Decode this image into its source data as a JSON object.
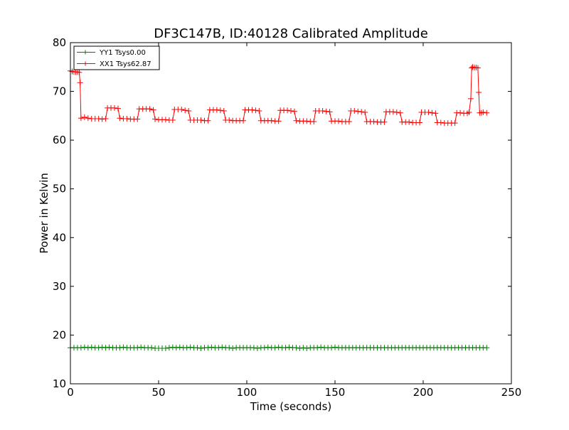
{
  "chart_data": {
    "type": "line",
    "title": "DF3C147B, ID:40128 Calibrated Amplitude",
    "xlabel": "Time (seconds)",
    "ylabel": "Power in Kelvin",
    "xlim": [
      0,
      250
    ],
    "ylim": [
      10,
      80
    ],
    "xticks": [
      0,
      50,
      100,
      150,
      200,
      250
    ],
    "yticks": [
      10,
      20,
      30,
      40,
      50,
      60,
      70,
      80
    ],
    "grid": false,
    "legend": "top-left",
    "marker": "+",
    "series": [
      {
        "name": "YY1 Tsys0.00",
        "color": "#008000",
        "points": [
          [
            0,
            17.4
          ],
          [
            2,
            17.4
          ],
          [
            4,
            17.4
          ],
          [
            6,
            17.4
          ],
          [
            8,
            17.5
          ],
          [
            10,
            17.4
          ],
          [
            12,
            17.5
          ],
          [
            14,
            17.4
          ],
          [
            16,
            17.4
          ],
          [
            18,
            17.5
          ],
          [
            20,
            17.4
          ],
          [
            22,
            17.5
          ],
          [
            24,
            17.4
          ],
          [
            26,
            17.4
          ],
          [
            28,
            17.4
          ],
          [
            30,
            17.5
          ],
          [
            32,
            17.4
          ],
          [
            34,
            17.4
          ],
          [
            36,
            17.4
          ],
          [
            38,
            17.4
          ],
          [
            40,
            17.5
          ],
          [
            42,
            17.4
          ],
          [
            44,
            17.4
          ],
          [
            46,
            17.4
          ],
          [
            48,
            17.3
          ],
          [
            50,
            17.3
          ],
          [
            52,
            17.3
          ],
          [
            54,
            17.3
          ],
          [
            56,
            17.4
          ],
          [
            58,
            17.5
          ],
          [
            60,
            17.4
          ],
          [
            62,
            17.5
          ],
          [
            64,
            17.4
          ],
          [
            66,
            17.4
          ],
          [
            68,
            17.5
          ],
          [
            70,
            17.4
          ],
          [
            72,
            17.4
          ],
          [
            74,
            17.3
          ],
          [
            76,
            17.4
          ],
          [
            78,
            17.4
          ],
          [
            80,
            17.5
          ],
          [
            82,
            17.4
          ],
          [
            84,
            17.4
          ],
          [
            86,
            17.5
          ],
          [
            88,
            17.4
          ],
          [
            90,
            17.4
          ],
          [
            92,
            17.3
          ],
          [
            94,
            17.4
          ],
          [
            96,
            17.4
          ],
          [
            98,
            17.4
          ],
          [
            100,
            17.4
          ],
          [
            102,
            17.4
          ],
          [
            104,
            17.4
          ],
          [
            106,
            17.3
          ],
          [
            108,
            17.4
          ],
          [
            110,
            17.4
          ],
          [
            112,
            17.5
          ],
          [
            114,
            17.4
          ],
          [
            116,
            17.4
          ],
          [
            118,
            17.5
          ],
          [
            120,
            17.4
          ],
          [
            122,
            17.4
          ],
          [
            124,
            17.5
          ],
          [
            126,
            17.4
          ],
          [
            128,
            17.4
          ],
          [
            130,
            17.3
          ],
          [
            132,
            17.4
          ],
          [
            134,
            17.3
          ],
          [
            136,
            17.4
          ],
          [
            138,
            17.4
          ],
          [
            140,
            17.4
          ],
          [
            142,
            17.5
          ],
          [
            144,
            17.4
          ],
          [
            146,
            17.4
          ],
          [
            148,
            17.4
          ],
          [
            150,
            17.5
          ],
          [
            152,
            17.4
          ],
          [
            154,
            17.4
          ],
          [
            156,
            17.4
          ],
          [
            158,
            17.4
          ],
          [
            160,
            17.4
          ],
          [
            162,
            17.4
          ],
          [
            164,
            17.4
          ],
          [
            166,
            17.4
          ],
          [
            168,
            17.4
          ],
          [
            170,
            17.4
          ],
          [
            172,
            17.4
          ],
          [
            174,
            17.4
          ],
          [
            176,
            17.4
          ],
          [
            178,
            17.4
          ],
          [
            180,
            17.4
          ],
          [
            182,
            17.4
          ],
          [
            184,
            17.4
          ],
          [
            186,
            17.4
          ],
          [
            188,
            17.4
          ],
          [
            190,
            17.4
          ],
          [
            192,
            17.4
          ],
          [
            194,
            17.4
          ],
          [
            196,
            17.4
          ],
          [
            198,
            17.4
          ],
          [
            200,
            17.4
          ],
          [
            202,
            17.4
          ],
          [
            204,
            17.4
          ],
          [
            206,
            17.4
          ],
          [
            208,
            17.4
          ],
          [
            210,
            17.4
          ],
          [
            212,
            17.4
          ],
          [
            214,
            17.4
          ],
          [
            216,
            17.4
          ],
          [
            218,
            17.4
          ],
          [
            220,
            17.4
          ],
          [
            222,
            17.4
          ],
          [
            224,
            17.4
          ],
          [
            226,
            17.4
          ],
          [
            228,
            17.4
          ],
          [
            230,
            17.4
          ],
          [
            232,
            17.4
          ],
          [
            234,
            17.4
          ],
          [
            236,
            17.4
          ]
        ]
      },
      {
        "name": "XX1 Tsys62.87",
        "color": "#ff0000",
        "points": [
          [
            0,
            74.2
          ],
          [
            1,
            74.1
          ],
          [
            2,
            74.0
          ],
          [
            3,
            74.0
          ],
          [
            4,
            74.0
          ],
          [
            5,
            73.9
          ],
          [
            5.5,
            71.8
          ],
          [
            6,
            64.5
          ],
          [
            8,
            64.7
          ],
          [
            10,
            64.5
          ],
          [
            12,
            64.4
          ],
          [
            14,
            64.4
          ],
          [
            16,
            64.4
          ],
          [
            18,
            64.3
          ],
          [
            20,
            64.4
          ],
          [
            21,
            66.6
          ],
          [
            23,
            66.6
          ],
          [
            25,
            66.6
          ],
          [
            27,
            66.5
          ],
          [
            28,
            64.5
          ],
          [
            30,
            64.4
          ],
          [
            32,
            64.4
          ],
          [
            34,
            64.3
          ],
          [
            36,
            64.3
          ],
          [
            38,
            64.3
          ],
          [
            39,
            66.4
          ],
          [
            41,
            66.4
          ],
          [
            43,
            66.4
          ],
          [
            45,
            66.4
          ],
          [
            47,
            66.2
          ],
          [
            48,
            64.3
          ],
          [
            50,
            64.2
          ],
          [
            52,
            64.2
          ],
          [
            54,
            64.2
          ],
          [
            56,
            64.1
          ],
          [
            58,
            64.1
          ],
          [
            59,
            66.3
          ],
          [
            61,
            66.3
          ],
          [
            63,
            66.3
          ],
          [
            65,
            66.1
          ],
          [
            67,
            66.0
          ],
          [
            68,
            64.1
          ],
          [
            70,
            64.1
          ],
          [
            72,
            64.1
          ],
          [
            74,
            64.1
          ],
          [
            76,
            64.0
          ],
          [
            78,
            64.0
          ],
          [
            79,
            66.2
          ],
          [
            81,
            66.2
          ],
          [
            83,
            66.2
          ],
          [
            85,
            66.1
          ],
          [
            87,
            66.0
          ],
          [
            88,
            64.1
          ],
          [
            90,
            64.1
          ],
          [
            92,
            64.0
          ],
          [
            94,
            64.0
          ],
          [
            96,
            64.0
          ],
          [
            98,
            64.0
          ],
          [
            99,
            66.2
          ],
          [
            101,
            66.2
          ],
          [
            103,
            66.2
          ],
          [
            105,
            66.1
          ],
          [
            107,
            66.0
          ],
          [
            108,
            64.0
          ],
          [
            110,
            64.0
          ],
          [
            112,
            64.0
          ],
          [
            114,
            64.0
          ],
          [
            116,
            63.9
          ],
          [
            118,
            63.9
          ],
          [
            119,
            66.1
          ],
          [
            121,
            66.1
          ],
          [
            123,
            66.1
          ],
          [
            125,
            66.0
          ],
          [
            127,
            65.9
          ],
          [
            128,
            64.0
          ],
          [
            130,
            63.9
          ],
          [
            132,
            63.9
          ],
          [
            134,
            63.9
          ],
          [
            136,
            63.8
          ],
          [
            138,
            63.8
          ],
          [
            139,
            66.0
          ],
          [
            141,
            66.0
          ],
          [
            143,
            66.0
          ],
          [
            145,
            65.9
          ],
          [
            147,
            65.8
          ],
          [
            148,
            63.9
          ],
          [
            150,
            63.9
          ],
          [
            152,
            63.9
          ],
          [
            154,
            63.8
          ],
          [
            156,
            63.8
          ],
          [
            158,
            63.8
          ],
          [
            159,
            66.0
          ],
          [
            161,
            66.0
          ],
          [
            163,
            65.9
          ],
          [
            165,
            65.8
          ],
          [
            167,
            65.7
          ],
          [
            168,
            63.8
          ],
          [
            170,
            63.8
          ],
          [
            172,
            63.8
          ],
          [
            174,
            63.7
          ],
          [
            176,
            63.7
          ],
          [
            178,
            63.7
          ],
          [
            179,
            65.8
          ],
          [
            181,
            65.8
          ],
          [
            183,
            65.8
          ],
          [
            185,
            65.7
          ],
          [
            187,
            65.6
          ],
          [
            188,
            63.7
          ],
          [
            190,
            63.7
          ],
          [
            192,
            63.7
          ],
          [
            194,
            63.6
          ],
          [
            196,
            63.6
          ],
          [
            198,
            63.6
          ],
          [
            199,
            65.7
          ],
          [
            201,
            65.7
          ],
          [
            203,
            65.7
          ],
          [
            205,
            65.6
          ],
          [
            207,
            65.5
          ],
          [
            208,
            63.6
          ],
          [
            210,
            63.6
          ],
          [
            212,
            63.5
          ],
          [
            214,
            63.5
          ],
          [
            216,
            63.5
          ],
          [
            218,
            63.5
          ],
          [
            219,
            65.6
          ],
          [
            221,
            65.6
          ],
          [
            223,
            65.5
          ],
          [
            225,
            65.5
          ],
          [
            226,
            65.7
          ],
          [
            227,
            68.5
          ],
          [
            227.5,
            74.8
          ],
          [
            228,
            75.0
          ],
          [
            229,
            74.9
          ],
          [
            230,
            74.9
          ],
          [
            231,
            74.8
          ],
          [
            231.5,
            69.8
          ],
          [
            232,
            65.6
          ],
          [
            233,
            65.6
          ],
          [
            234,
            65.7
          ],
          [
            236,
            65.6
          ]
        ]
      }
    ]
  }
}
